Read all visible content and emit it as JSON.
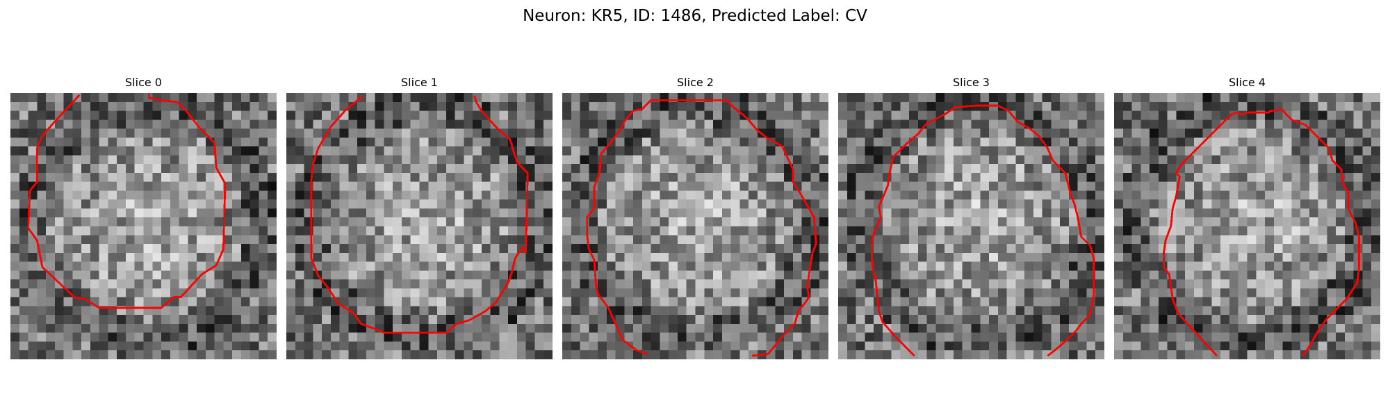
{
  "figure": {
    "title": "Neuron: KR5, ID: 1486, Predicted Label: CV"
  },
  "colors": {
    "contour": "#ff0000",
    "background": "#ffffff"
  },
  "slices": [
    {
      "label": "Slice 0"
    },
    {
      "label": "Slice 1"
    },
    {
      "label": "Slice 2"
    },
    {
      "label": "Slice 3"
    },
    {
      "label": "Slice 4"
    }
  ]
}
